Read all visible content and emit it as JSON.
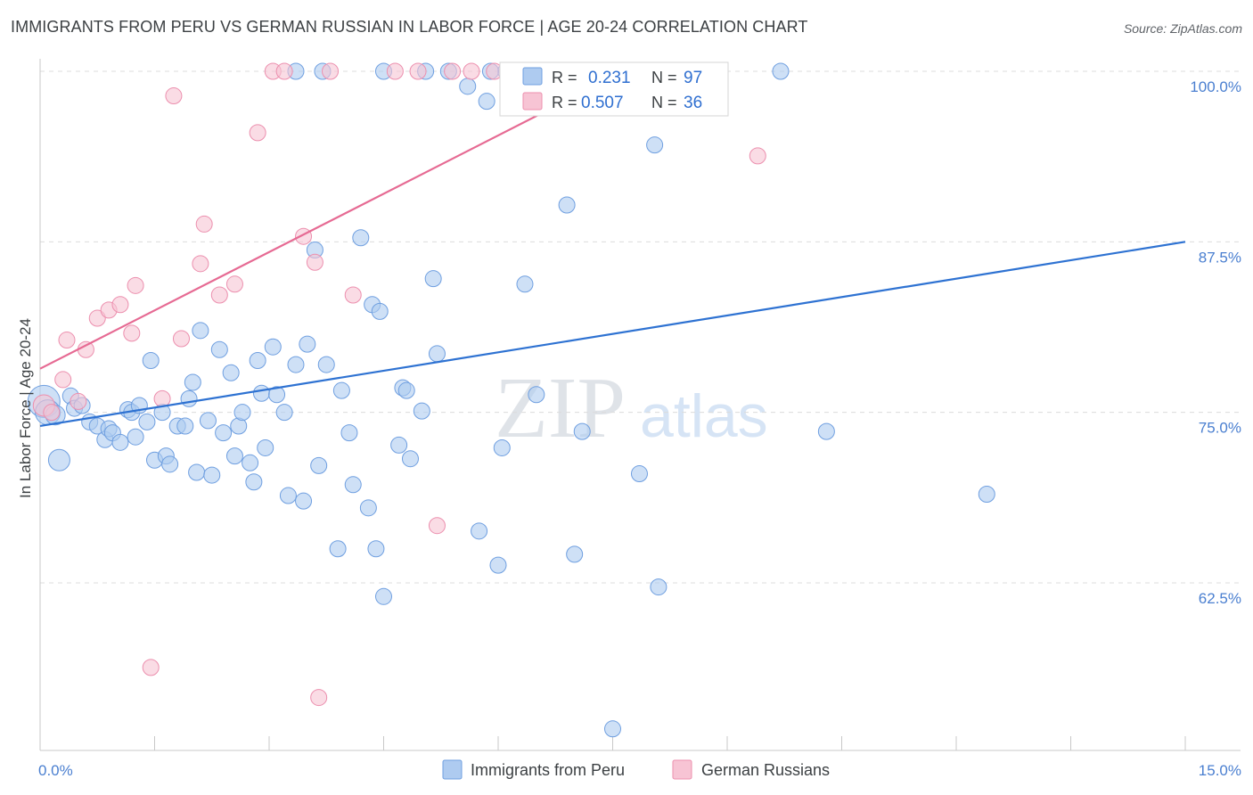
{
  "header": {
    "title": "IMMIGRANTS FROM PERU VS GERMAN RUSSIAN IN LABOR FORCE | AGE 20-24 CORRELATION CHART",
    "source": "Source: ZipAtlas.com"
  },
  "watermark": {
    "zip": "ZIP",
    "atlas": "atlas"
  },
  "colors": {
    "peru_fill": "#aecbf0",
    "peru_stroke": "#6f9fe0",
    "peru_line": "#2e72d2",
    "gr_fill": "#f7c4d4",
    "gr_stroke": "#ec8fae",
    "gr_line": "#e66a93",
    "grid": "#dcdcdc",
    "accent_text": "#4a7fd0"
  },
  "chart_data": {
    "type": "scatter",
    "title": "IMMIGRANTS FROM PERU VS GERMAN RUSSIAN IN LABOR FORCE | AGE 20-24 CORRELATION CHART",
    "xlabel": "",
    "ylabel": "In Labor Force | Age 20-24",
    "xlim": [
      0,
      15
    ],
    "ylim": [
      51,
      101
    ],
    "x_tick_labels": [
      "0.0%",
      "15.0%"
    ],
    "y_ticks": [
      100,
      87.5,
      75,
      62.5
    ],
    "y_tick_labels": [
      "100.0%",
      "87.5%",
      "75.0%",
      "62.5%"
    ],
    "legend": {
      "position": "top-center",
      "rows": [
        {
          "r_label": "R =",
          "r_value": "0.231",
          "n_label": "N =",
          "n_value": "97"
        },
        {
          "r_label": "R =",
          "r_value": "0.507",
          "n_label": "N =",
          "n_value": "36"
        }
      ]
    },
    "bottom_legend": [
      "Immigrants from Peru",
      "German Russians"
    ],
    "series": [
      {
        "name": "Immigrants from Peru",
        "R": 0.231,
        "N": 97,
        "trend": {
          "x": [
            0,
            15
          ],
          "y": [
            74.0,
            87.5
          ]
        },
        "points": [
          [
            0.05,
            75.8,
            18
          ],
          [
            0.1,
            75.0,
            14
          ],
          [
            0.2,
            74.8,
            11
          ],
          [
            0.25,
            71.5,
            12
          ],
          [
            0.4,
            76.2,
            9
          ],
          [
            0.45,
            75.3,
            9
          ],
          [
            0.55,
            75.5,
            9
          ],
          [
            0.65,
            74.3,
            9
          ],
          [
            0.75,
            74.0,
            9
          ],
          [
            0.85,
            73.0,
            9
          ],
          [
            0.9,
            73.8,
            9
          ],
          [
            0.95,
            73.5,
            9
          ],
          [
            1.05,
            72.8,
            9
          ],
          [
            1.15,
            75.2,
            9
          ],
          [
            1.2,
            75.0,
            9
          ],
          [
            1.25,
            73.2,
            9
          ],
          [
            1.3,
            75.5,
            9
          ],
          [
            1.4,
            74.3,
            9
          ],
          [
            1.45,
            78.8,
            9
          ],
          [
            1.5,
            71.5,
            9
          ],
          [
            1.6,
            75.0,
            9
          ],
          [
            1.65,
            71.8,
            9
          ],
          [
            1.7,
            71.2,
            9
          ],
          [
            1.8,
            74.0,
            9
          ],
          [
            1.9,
            74.0,
            9
          ],
          [
            1.95,
            76.0,
            9
          ],
          [
            2.0,
            77.2,
            9
          ],
          [
            2.05,
            70.6,
            9
          ],
          [
            2.1,
            81.0,
            9
          ],
          [
            2.2,
            74.4,
            9
          ],
          [
            2.25,
            70.4,
            9
          ],
          [
            2.35,
            79.6,
            9
          ],
          [
            2.4,
            73.5,
            9
          ],
          [
            2.5,
            77.9,
            9
          ],
          [
            2.55,
            71.8,
            9
          ],
          [
            2.6,
            74.0,
            9
          ],
          [
            2.65,
            75.0,
            9
          ],
          [
            2.75,
            71.3,
            9
          ],
          [
            2.8,
            69.9,
            9
          ],
          [
            2.85,
            78.8,
            9
          ],
          [
            2.9,
            76.4,
            9
          ],
          [
            2.95,
            72.4,
            9
          ],
          [
            3.05,
            79.8,
            9
          ],
          [
            3.1,
            76.3,
            9
          ],
          [
            3.2,
            75.0,
            9
          ],
          [
            3.25,
            68.9,
            9
          ],
          [
            3.35,
            78.5,
            9
          ],
          [
            3.45,
            68.5,
            9
          ],
          [
            3.5,
            80.0,
            9
          ],
          [
            3.6,
            86.9,
            9
          ],
          [
            3.65,
            71.1,
            9
          ],
          [
            3.75,
            78.5,
            9
          ],
          [
            3.9,
            65.0,
            9
          ],
          [
            3.95,
            76.6,
            9
          ],
          [
            4.05,
            73.5,
            9
          ],
          [
            4.1,
            69.7,
            9
          ],
          [
            4.2,
            87.8,
            9
          ],
          [
            4.3,
            68.0,
            9
          ],
          [
            4.35,
            82.9,
            9
          ],
          [
            4.4,
            65.0,
            9
          ],
          [
            4.45,
            82.4,
            9
          ],
          [
            4.5,
            61.5,
            9
          ],
          [
            4.7,
            72.6,
            9
          ],
          [
            4.75,
            76.8,
            9
          ],
          [
            4.8,
            76.6,
            9
          ],
          [
            4.85,
            71.6,
            9
          ],
          [
            5.0,
            75.1,
            9
          ],
          [
            5.15,
            84.8,
            9
          ],
          [
            5.2,
            79.3,
            9
          ],
          [
            5.75,
            66.3,
            9
          ],
          [
            6.0,
            63.8,
            9
          ],
          [
            6.05,
            72.4,
            9
          ],
          [
            6.35,
            84.4,
            9
          ],
          [
            6.5,
            76.3,
            9
          ],
          [
            6.9,
            90.2,
            9
          ],
          [
            7.0,
            64.6,
            9
          ],
          [
            7.1,
            73.6,
            9
          ],
          [
            7.85,
            70.5,
            9
          ],
          [
            8.05,
            94.6,
            9
          ],
          [
            8.1,
            62.2,
            9
          ],
          [
            7.5,
            51.8,
            9
          ],
          [
            10.3,
            73.6,
            9
          ],
          [
            12.4,
            69.0,
            9
          ],
          [
            3.35,
            100.0,
            9
          ],
          [
            3.7,
            100.0,
            9
          ],
          [
            5.05,
            100.0,
            9
          ],
          [
            5.35,
            100.0,
            9
          ],
          [
            5.6,
            98.9,
            9
          ],
          [
            5.85,
            97.8,
            9
          ],
          [
            6.1,
            100.0,
            9
          ],
          [
            6.9,
            100.0,
            9
          ],
          [
            8.35,
            100.0,
            9
          ],
          [
            9.7,
            100.0,
            9
          ],
          [
            7.2,
            100.0,
            9
          ],
          [
            4.5,
            100.0,
            9
          ],
          [
            5.9,
            100.0,
            9
          ]
        ]
      },
      {
        "name": "German Russians",
        "R": 0.507,
        "N": 36,
        "trend": {
          "x": [
            0,
            7.65
          ],
          "y": [
            78.2,
            100.0
          ]
        },
        "points": [
          [
            0.05,
            75.5,
            12
          ],
          [
            0.15,
            75.0,
            9
          ],
          [
            0.3,
            77.4,
            9
          ],
          [
            0.35,
            80.3,
            9
          ],
          [
            0.5,
            75.8,
            9
          ],
          [
            0.6,
            79.6,
            9
          ],
          [
            0.75,
            81.9,
            9
          ],
          [
            0.9,
            82.5,
            9
          ],
          [
            1.05,
            82.9,
            9
          ],
          [
            1.2,
            80.8,
            9
          ],
          [
            1.25,
            84.3,
            9
          ],
          [
            1.45,
            56.3,
            9
          ],
          [
            1.6,
            76.0,
            9
          ],
          [
            1.75,
            98.2,
            9
          ],
          [
            1.85,
            80.4,
            9
          ],
          [
            2.1,
            85.9,
            9
          ],
          [
            2.15,
            88.8,
            9
          ],
          [
            2.35,
            83.6,
            9
          ],
          [
            2.55,
            84.4,
            9
          ],
          [
            2.85,
            95.5,
            9
          ],
          [
            3.05,
            100.0,
            9
          ],
          [
            3.2,
            100.0,
            9
          ],
          [
            3.45,
            87.9,
            9
          ],
          [
            3.6,
            86.0,
            9
          ],
          [
            3.65,
            54.1,
            9
          ],
          [
            3.8,
            100.0,
            9
          ],
          [
            4.1,
            83.6,
            9
          ],
          [
            4.65,
            100.0,
            9
          ],
          [
            4.95,
            100.0,
            9
          ],
          [
            5.2,
            66.7,
            9
          ],
          [
            5.4,
            100.0,
            9
          ],
          [
            5.65,
            100.0,
            9
          ],
          [
            5.95,
            100.0,
            9
          ],
          [
            6.15,
            100.0,
            9
          ],
          [
            7.75,
            100.0,
            9
          ],
          [
            9.4,
            93.8,
            9
          ]
        ]
      }
    ]
  }
}
